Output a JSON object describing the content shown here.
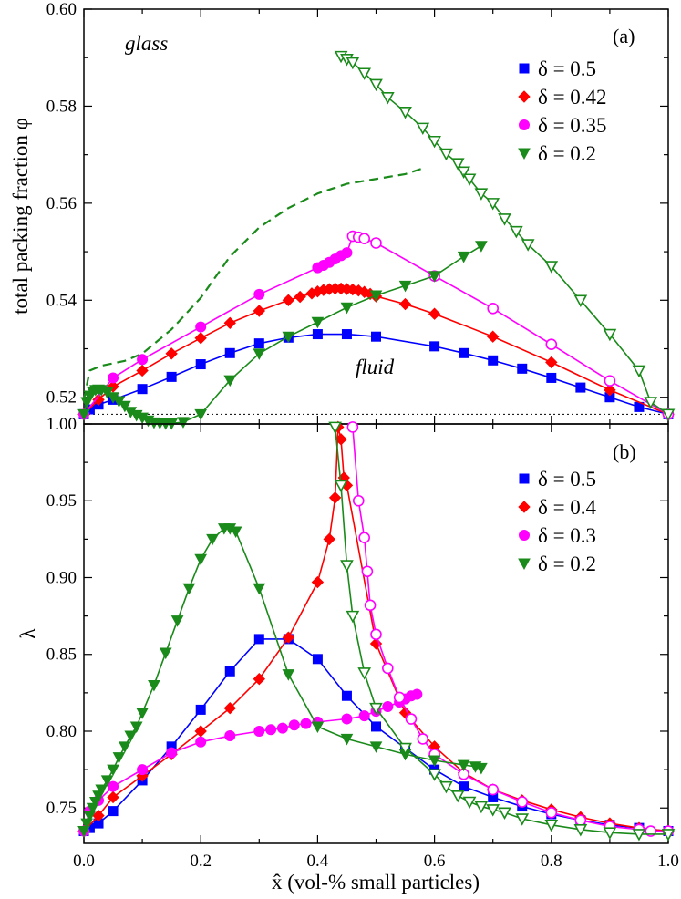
{
  "chart_data": [
    {
      "type": "line",
      "panel_label": "(a)",
      "ylabel": "total packing fraction φ",
      "xlim": [
        0,
        1
      ],
      "ylim": [
        0.5145,
        0.6
      ],
      "yticks": [
        "0.52",
        "0.54",
        "0.56",
        "0.58",
        "0.60"
      ],
      "annotations": [
        {
          "text": "glass",
          "x": 0.08,
          "y": 0.5915
        },
        {
          "text": "fluid",
          "x": 0.46,
          "y": 0.5195
        }
      ],
      "reference_line": {
        "y": 0.5165,
        "style": "dotted"
      },
      "legend": {
        "placement": "top-right"
      },
      "series": [
        {
          "name": "δ = 0.5",
          "color": "#0000ff",
          "marker": "square",
          "x": [
            0,
            0.01,
            0.025,
            0.05,
            0.1,
            0.15,
            0.2,
            0.25,
            0.3,
            0.35,
            0.4,
            0.45,
            0.5,
            0.6,
            0.65,
            0.7,
            0.75,
            0.8,
            0.85,
            0.9,
            0.95,
            1.0
          ],
          "y": [
            0.5165,
            0.5175,
            0.5185,
            0.5195,
            0.5217,
            0.5242,
            0.5268,
            0.5291,
            0.5311,
            0.5323,
            0.533,
            0.533,
            0.5325,
            0.5305,
            0.5291,
            0.5276,
            0.5259,
            0.524,
            0.522,
            0.52,
            0.518,
            0.5165
          ],
          "open_from": null
        },
        {
          "name": "δ = 0.42",
          "color": "#ff0000",
          "marker": "diamond",
          "x": [
            0,
            0.025,
            0.05,
            0.1,
            0.15,
            0.2,
            0.25,
            0.3,
            0.35,
            0.37,
            0.39,
            0.4,
            0.41,
            0.42,
            0.43,
            0.44,
            0.45,
            0.46,
            0.47,
            0.48,
            0.49,
            0.5,
            0.55,
            0.6,
            0.7,
            0.8,
            0.9,
            1.0
          ],
          "y": [
            0.5165,
            0.5195,
            0.5222,
            0.5255,
            0.529,
            0.5322,
            0.5353,
            0.5378,
            0.54,
            0.5407,
            0.5414,
            0.5418,
            0.5421,
            0.5423,
            0.5424,
            0.5424,
            0.5423,
            0.5422,
            0.542,
            0.5417,
            0.5413,
            0.5408,
            0.5392,
            0.5372,
            0.5325,
            0.5272,
            0.5215,
            0.5165
          ],
          "open_from": null
        },
        {
          "name": "δ = 0.35",
          "color": "#ff00ff",
          "marker": "circle",
          "x": [
            0,
            0.05,
            0.1,
            0.2,
            0.3,
            0.4,
            0.41,
            0.42,
            0.43,
            0.44,
            0.45,
            0.46,
            0.47,
            0.48,
            0.5,
            0.6,
            0.7,
            0.8,
            0.9,
            1.0
          ],
          "y": [
            0.5165,
            0.524,
            0.5278,
            0.5345,
            0.5412,
            0.5467,
            0.5472,
            0.5478,
            0.5485,
            0.5492,
            0.5498,
            0.5532,
            0.553,
            0.5527,
            0.5518,
            0.545,
            0.5383,
            0.5309,
            0.5234,
            0.5165
          ],
          "open_from": 0.46
        },
        {
          "name": "δ = 0.2",
          "color": "#1a8a1a",
          "marker": "triangle-down",
          "x": [
            0,
            0.005,
            0.01,
            0.015,
            0.02,
            0.025,
            0.03,
            0.04,
            0.05,
            0.06,
            0.07,
            0.08,
            0.09,
            0.1,
            0.11,
            0.12,
            0.13,
            0.14,
            0.15,
            0.17,
            0.2,
            0.25,
            0.3,
            0.35,
            0.4,
            0.45,
            0.5,
            0.55,
            0.6,
            0.65,
            0.68,
            0.44,
            0.45,
            0.46,
            0.48,
            0.5,
            0.52,
            0.55,
            0.58,
            0.6,
            0.62,
            0.64,
            0.65,
            0.66,
            0.68,
            0.7,
            0.72,
            0.74,
            0.76,
            0.8,
            0.85,
            0.9,
            0.95,
            0.97,
            1.0
          ],
          "y": [
            0.5165,
            0.519,
            0.5203,
            0.5212,
            0.5215,
            0.5216,
            0.5215,
            0.521,
            0.52,
            0.5192,
            0.5182,
            0.517,
            0.5163,
            0.5158,
            0.5152,
            0.5148,
            0.5147,
            0.5146,
            0.5146,
            0.5149,
            0.5165,
            0.5235,
            0.529,
            0.5325,
            0.5355,
            0.5385,
            0.541,
            0.543,
            0.545,
            0.549,
            0.5512,
            0.5903,
            0.5897,
            0.589,
            0.5868,
            0.5845,
            0.5818,
            0.5788,
            0.5755,
            0.5728,
            0.5702,
            0.5682,
            0.5665,
            0.565,
            0.562,
            0.56,
            0.5568,
            0.5542,
            0.5515,
            0.547,
            0.54,
            0.533,
            0.5255,
            0.519,
            0.5165
          ],
          "open_from": 0.44
        }
      ],
      "dashed_series": {
        "color": "#1a8a1a",
        "x": [
          0.0,
          0.01,
          0.03,
          0.07,
          0.1,
          0.15,
          0.2,
          0.25,
          0.3,
          0.35,
          0.4,
          0.45,
          0.5,
          0.55,
          0.58
        ],
        "y": [
          0.5195,
          0.5255,
          0.5265,
          0.5275,
          0.529,
          0.534,
          0.5405,
          0.549,
          0.555,
          0.559,
          0.562,
          0.564,
          0.565,
          0.566,
          0.5672
        ]
      }
    },
    {
      "type": "line",
      "panel_label": "(b)",
      "ylabel": "λ",
      "xlabel": "x̂ (vol-% small particles)",
      "xlim": [
        0,
        1
      ],
      "ylim": [
        0.727,
        1.0
      ],
      "xticks": [
        "0.0",
        "0.2",
        "0.4",
        "0.6",
        "0.8",
        "1.0"
      ],
      "yticks": [
        "0.75",
        "0.80",
        "0.85",
        "0.90",
        "0.95",
        "1.00"
      ],
      "legend": {
        "placement": "top-right"
      },
      "series": [
        {
          "name": "δ = 0.5",
          "color": "#0000ff",
          "marker": "square",
          "x": [
            0,
            0.01,
            0.025,
            0.05,
            0.1,
            0.15,
            0.2,
            0.25,
            0.3,
            0.35,
            0.4,
            0.45,
            0.5,
            0.55,
            0.6,
            0.65,
            0.7,
            0.75,
            0.8,
            0.85,
            0.9,
            0.95,
            1.0
          ],
          "y": [
            0.735,
            0.737,
            0.74,
            0.748,
            0.768,
            0.79,
            0.814,
            0.839,
            0.86,
            0.86,
            0.847,
            0.823,
            0.803,
            0.789,
            0.775,
            0.764,
            0.757,
            0.751,
            0.746,
            0.742,
            0.739,
            0.737,
            0.735
          ],
          "open_from": null
        },
        {
          "name": "δ = 0.4",
          "color": "#ff0000",
          "marker": "diamond",
          "x": [
            0,
            0.025,
            0.05,
            0.1,
            0.15,
            0.2,
            0.25,
            0.3,
            0.35,
            0.4,
            0.42,
            0.43,
            0.435,
            0.44,
            0.445,
            0.45,
            0.5,
            0.55,
            0.6,
            0.65,
            0.7,
            0.75,
            0.8,
            0.85,
            0.9,
            0.95,
            1.0
          ],
          "y": [
            0.735,
            0.745,
            0.757,
            0.771,
            0.785,
            0.8,
            0.815,
            0.834,
            0.861,
            0.897,
            0.925,
            0.952,
            0.998,
            0.99,
            0.965,
            0.96,
            0.857,
            0.812,
            0.79,
            0.773,
            0.762,
            0.755,
            0.749,
            0.744,
            0.74,
            0.737,
            0.735
          ],
          "open_from": null
        },
        {
          "name": "δ = 0.3",
          "color": "#ff00ff",
          "marker": "circle",
          "x": [
            0,
            0.01,
            0.025,
            0.05,
            0.1,
            0.15,
            0.2,
            0.25,
            0.3,
            0.32,
            0.34,
            0.36,
            0.38,
            0.4,
            0.45,
            0.48,
            0.5,
            0.52,
            0.54,
            0.55,
            0.56,
            0.57,
            0.46,
            0.47,
            0.48,
            0.485,
            0.49,
            0.5,
            0.52,
            0.54,
            0.56,
            0.58,
            0.6,
            0.65,
            0.7,
            0.75,
            0.8,
            0.85,
            0.9,
            0.95,
            0.97,
            1.0
          ],
          "y": [
            0.735,
            0.748,
            0.755,
            0.764,
            0.775,
            0.786,
            0.793,
            0.797,
            0.8,
            0.801,
            0.802,
            0.804,
            0.805,
            0.806,
            0.808,
            0.81,
            0.813,
            0.816,
            0.819,
            0.821,
            0.823,
            0.824,
            0.998,
            0.95,
            0.926,
            0.904,
            0.882,
            0.863,
            0.841,
            0.822,
            0.808,
            0.795,
            0.785,
            0.772,
            0.762,
            0.754,
            0.747,
            0.742,
            0.738,
            0.736,
            0.735,
            0.735
          ],
          "open_from": 0.46
        },
        {
          "name": "δ = 0.2",
          "color": "#1a8a1a",
          "marker": "triangle-down",
          "x": [
            0,
            0.005,
            0.01,
            0.015,
            0.02,
            0.025,
            0.03,
            0.04,
            0.05,
            0.06,
            0.07,
            0.08,
            0.09,
            0.1,
            0.12,
            0.14,
            0.16,
            0.18,
            0.2,
            0.22,
            0.24,
            0.25,
            0.26,
            0.3,
            0.35,
            0.4,
            0.45,
            0.5,
            0.55,
            0.6,
            0.65,
            0.67,
            0.68,
            0.43,
            0.44,
            0.45,
            0.46,
            0.48,
            0.5,
            0.55,
            0.6,
            0.62,
            0.64,
            0.66,
            0.68,
            0.7,
            0.72,
            0.75,
            0.8,
            0.85,
            0.9,
            0.95,
            1.0
          ],
          "y": [
            0.735,
            0.74,
            0.745,
            0.75,
            0.754,
            0.758,
            0.762,
            0.768,
            0.775,
            0.783,
            0.79,
            0.797,
            0.803,
            0.812,
            0.83,
            0.851,
            0.872,
            0.893,
            0.912,
            0.925,
            0.932,
            0.932,
            0.93,
            0.893,
            0.837,
            0.803,
            0.795,
            0.79,
            0.785,
            0.781,
            0.778,
            0.777,
            0.776,
            0.998,
            0.96,
            0.908,
            0.875,
            0.838,
            0.815,
            0.789,
            0.772,
            0.764,
            0.758,
            0.754,
            0.751,
            0.749,
            0.747,
            0.743,
            0.739,
            0.736,
            0.734,
            0.733,
            0.733
          ],
          "open_from": 0.43
        }
      ]
    }
  ]
}
